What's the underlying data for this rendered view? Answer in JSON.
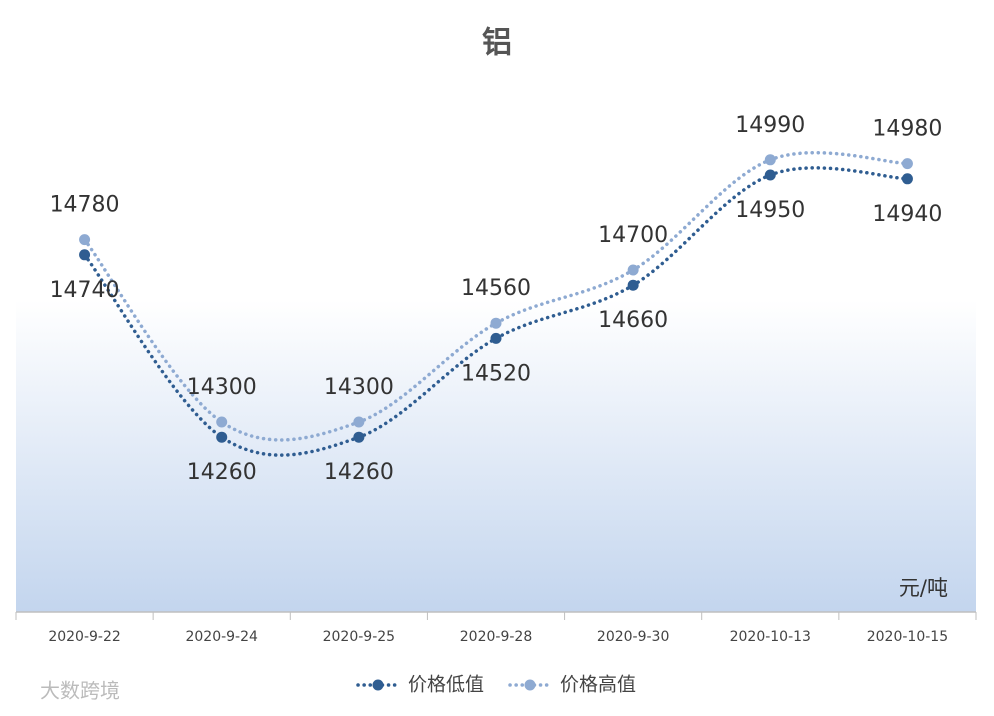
{
  "chart_data": {
    "type": "line",
    "title": "铝",
    "unit": "元/吨",
    "watermark": "大数跨境",
    "categories": [
      "2020-9-22",
      "2020-9-24",
      "2020-9-25",
      "2020-9-28",
      "2020-9-30",
      "2020-10-13",
      "2020-10-15"
    ],
    "series": [
      {
        "name": "价格低值",
        "color": "#2f5d91",
        "values": [
          14740,
          14260,
          14260,
          14520,
          14660,
          14950,
          14940
        ]
      },
      {
        "name": "价格高值",
        "color": "#8eaad2",
        "values": [
          14780,
          14300,
          14300,
          14560,
          14700,
          14990,
          14980
        ]
      }
    ],
    "ylim": [
      13800,
      15200
    ],
    "smooth": true,
    "legend": "bottom"
  }
}
